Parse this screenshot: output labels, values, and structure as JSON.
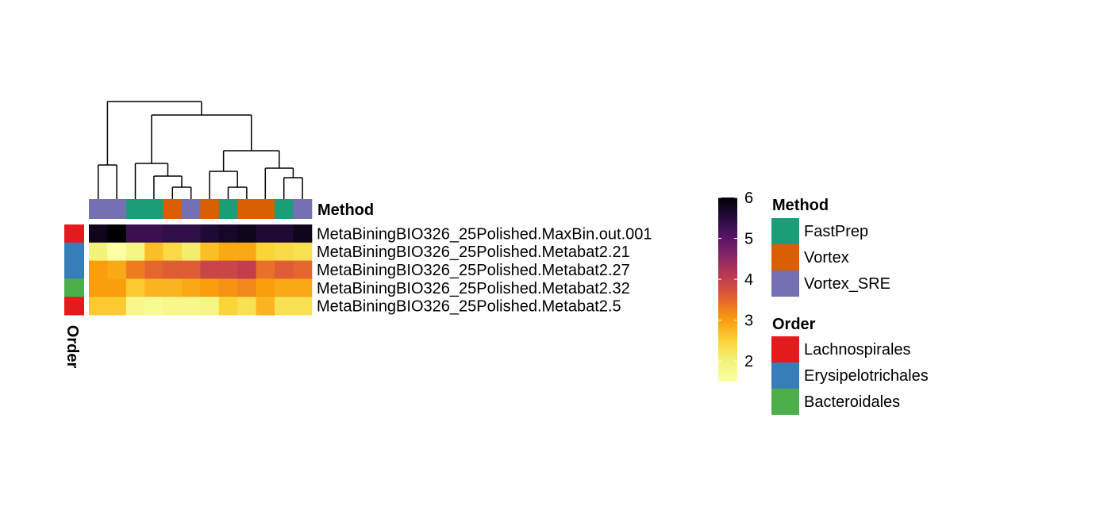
{
  "chart_data": {
    "type": "heatmap",
    "title": "",
    "method_label": "Method",
    "order_label": "Order",
    "rows": [
      "MetaBiningBIO326_25Polished.MaxBin.out.001",
      "MetaBiningBIO326_25Polished.Metabat2.21",
      "MetaBiningBIO326_25Polished.Metabat2.27",
      "MetaBiningBIO326_25Polished.Metabat2.32",
      "MetaBiningBIO326_25Polished.Metabat2.5"
    ],
    "row_order": [
      "Lachnospirales",
      "Erysipelotrichales",
      "Erysipelotrichales",
      "Bacteroidales",
      "Lachnospirales"
    ],
    "column_method": [
      "Vortex_SRE",
      "Vortex_SRE",
      "FastPrep",
      "FastPrep",
      "Vortex",
      "Vortex_SRE",
      "Vortex",
      "FastPrep",
      "Vortex",
      "Vortex",
      "FastPrep",
      "Vortex_SRE"
    ],
    "values": [
      [
        5.8,
        6.0,
        5.3,
        5.3,
        5.4,
        5.4,
        5.6,
        5.7,
        5.8,
        5.6,
        5.6,
        5.8
      ],
      [
        2.0,
        1.5,
        1.9,
        2.7,
        2.4,
        2.1,
        2.7,
        2.9,
        2.9,
        2.5,
        2.4,
        2.3
      ],
      [
        3.0,
        2.9,
        3.3,
        3.5,
        3.6,
        3.6,
        3.9,
        3.9,
        4.0,
        3.4,
        3.6,
        3.5
      ],
      [
        3.0,
        3.0,
        2.6,
        2.8,
        2.8,
        2.9,
        3.0,
        3.1,
        3.2,
        3.0,
        2.9,
        2.9
      ],
      [
        2.6,
        2.6,
        1.8,
        1.7,
        1.8,
        1.8,
        1.9,
        2.5,
        2.3,
        2.8,
        2.3,
        2.3
      ]
    ],
    "color_scale": {
      "min": 1.5,
      "max": 6.0,
      "ticks": [
        2,
        3,
        4,
        5,
        6
      ],
      "stops": [
        {
          "v": 1.5,
          "c": "#fcffa4"
        },
        {
          "v": 2.0,
          "c": "#f3f27c"
        },
        {
          "v": 2.5,
          "c": "#fbd438"
        },
        {
          "v": 3.0,
          "c": "#fa9e0e"
        },
        {
          "v": 3.5,
          "c": "#e5652e"
        },
        {
          "v": 4.0,
          "c": "#c33d4e"
        },
        {
          "v": 4.5,
          "c": "#8e2a63"
        },
        {
          "v": 5.0,
          "c": "#5b1468"
        },
        {
          "v": 5.5,
          "c": "#250c40"
        },
        {
          "v": 6.0,
          "c": "#000004"
        }
      ]
    },
    "method_legend": [
      {
        "name": "FastPrep",
        "color": "#1b9e77"
      },
      {
        "name": "Vortex",
        "color": "#d95f02"
      },
      {
        "name": "Vortex_SRE",
        "color": "#7570b3"
      }
    ],
    "order_legend": [
      {
        "name": "Lachnospirales",
        "color": "#e41a1c"
      },
      {
        "name": "Erysipelotrichales",
        "color": "#377eb8"
      },
      {
        "name": "Bacteroidales",
        "color": "#4daf4a"
      }
    ]
  }
}
